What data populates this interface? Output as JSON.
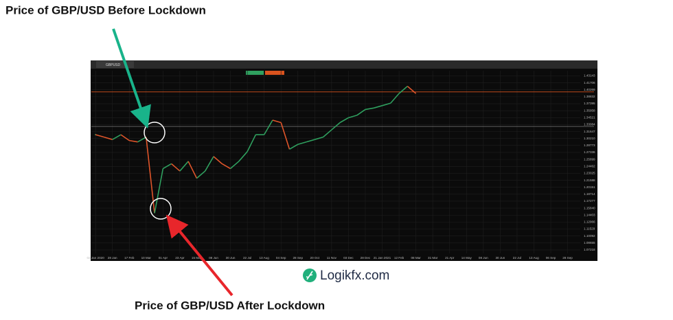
{
  "chart_data": {
    "type": "line",
    "symbol": "GBPUSD",
    "annotations": [
      "Price of GBP/USD Before Lockdown",
      "Price of GBP/USD After Lockdown"
    ],
    "brand": "Logikfx.com",
    "categories": [
      "02 Jan 2020",
      null,
      "28 Jan",
      null,
      "17 Feb",
      null,
      "10 Mar",
      null,
      "01 Apr",
      null,
      "23 Apr",
      null,
      "15 May",
      null,
      "08 Jun",
      null,
      "30 Jun",
      null,
      "22 Jul",
      null,
      "13 Aug",
      null,
      "04 Sep",
      null,
      "28 Sep",
      null,
      "20 Oct",
      null,
      "11 Nov",
      null,
      "03 Dec",
      null,
      "28 Dec",
      null,
      "21 Jan 2021",
      null,
      "12 Feb",
      null,
      "08 Mar",
      null,
      "31 Mar",
      null,
      "21 Apr",
      null,
      "14 May",
      null,
      "08 Jun",
      null,
      "30 Jun",
      null,
      "22 Jul",
      null,
      "13 Aug",
      null,
      "06 Sep",
      null,
      "28 Sep",
      null
    ],
    "values": [
      1.31,
      1.305,
      1.3,
      1.31,
      1.298,
      1.295,
      1.305,
      1.148,
      1.24,
      1.25,
      1.235,
      1.255,
      1.22,
      1.235,
      1.265,
      1.25,
      1.24,
      1.255,
      1.275,
      1.31,
      1.31,
      1.34,
      1.335,
      1.28,
      1.29,
      1.295,
      1.3,
      1.305,
      1.32,
      1.335,
      1.345,
      1.35,
      1.362,
      1.365,
      1.37,
      1.375,
      1.395,
      1.41,
      1.395,
      null,
      null,
      null,
      null,
      null,
      null,
      null,
      null,
      null,
      null,
      null,
      null,
      null,
      null,
      null,
      null,
      null,
      null,
      null
    ],
    "up_color": "#2fa05f",
    "down_color": "#e0552a",
    "ylim": [
      1.065,
      1.442
    ],
    "yticks": [
      1.07218,
      1.08655,
      1.10092,
      1.11529,
      1.12966,
      1.14403,
      {
        "value": 1.1584,
        "label": "1.15840"
      },
      1.17277,
      1.18714,
      1.20151,
      1.21588,
      1.23025,
      1.24462,
      1.25899,
      1.27336,
      1.28773,
      {
        "value": 1.3021,
        "label": "1.30210"
      },
      1.31647,
      1.33084,
      1.34521,
      1.35958,
      1.37395,
      1.38832,
      1.40269,
      1.41706,
      1.43143
    ],
    "hlines": [
      {
        "value": 1.3983,
        "color": "#d9531e"
      },
      {
        "value": 1.327,
        "color": "#7a7a7a"
      }
    ],
    "grid": true
  }
}
